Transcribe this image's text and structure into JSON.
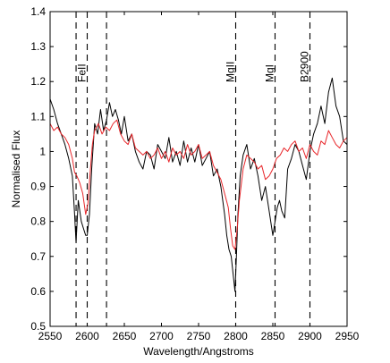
{
  "chart_data": {
    "type": "line",
    "title": "",
    "xlabel": "Wavelength/Angstroms",
    "ylabel": "Normalised Flux",
    "xlim": [
      2550,
      2950
    ],
    "ylim": [
      0.5,
      1.4
    ],
    "grid": false,
    "legend": "none",
    "x_ticks": [
      2550,
      2600,
      2650,
      2700,
      2750,
      2800,
      2850,
      2900,
      2950
    ],
    "y_ticks": [
      0.5,
      0.6,
      0.7,
      0.8,
      0.9,
      1,
      1.1,
      1.2,
      1.3,
      1.4
    ],
    "series": [
      {
        "color": "#000000",
        "x": [
          2550,
          2555,
          2560,
          2565,
          2570,
          2575,
          2580,
          2583,
          2585,
          2588,
          2590,
          2592,
          2595,
          2598,
          2600,
          2603,
          2606,
          2610,
          2614,
          2618,
          2622,
          2626,
          2630,
          2634,
          2638,
          2642,
          2646,
          2650,
          2655,
          2660,
          2665,
          2670,
          2675,
          2680,
          2685,
          2690,
          2695,
          2700,
          2705,
          2710,
          2715,
          2720,
          2725,
          2730,
          2735,
          2740,
          2745,
          2750,
          2755,
          2760,
          2765,
          2770,
          2775,
          2780,
          2785,
          2788,
          2791,
          2794,
          2797,
          2799,
          2801,
          2803,
          2806,
          2810,
          2815,
          2820,
          2825,
          2830,
          2835,
          2840,
          2845,
          2850,
          2853,
          2856,
          2859,
          2862,
          2866,
          2870,
          2875,
          2880,
          2885,
          2890,
          2895,
          2900,
          2905,
          2910,
          2915,
          2920,
          2925,
          2930,
          2935,
          2940,
          2945,
          2950
        ],
        "y": [
          1.15,
          1.12,
          1.08,
          1.05,
          1.02,
          0.98,
          0.93,
          0.82,
          0.74,
          0.86,
          0.83,
          0.8,
          0.78,
          0.76,
          0.76,
          0.82,
          0.95,
          1.08,
          1.05,
          1.12,
          1.06,
          1.09,
          1.14,
          1.1,
          1.12,
          1.09,
          1.05,
          1.1,
          1.03,
          1.05,
          1.0,
          0.97,
          0.95,
          1.0,
          0.99,
          0.95,
          1.02,
          1.0,
          0.98,
          1.04,
          0.97,
          1.0,
          0.96,
          1.03,
          0.97,
          1.01,
          0.97,
          1.02,
          0.96,
          0.98,
          1.0,
          0.93,
          0.95,
          0.9,
          0.82,
          0.76,
          0.72,
          0.7,
          0.64,
          0.6,
          0.7,
          0.82,
          0.93,
          0.99,
          1.02,
          0.95,
          0.98,
          0.93,
          0.86,
          0.9,
          0.83,
          0.76,
          0.8,
          0.84,
          0.86,
          0.83,
          0.81,
          0.95,
          0.98,
          1.02,
          1.0,
          0.96,
          0.92,
          1.0,
          1.05,
          1.08,
          1.13,
          1.08,
          1.17,
          1.21,
          1.13,
          1.1,
          1.03,
          1.02
        ]
      },
      {
        "color": "#e8262a",
        "x": [
          2550,
          2555,
          2560,
          2565,
          2570,
          2575,
          2580,
          2583,
          2586,
          2590,
          2594,
          2598,
          2601,
          2604,
          2607,
          2610,
          2615,
          2620,
          2625,
          2630,
          2635,
          2640,
          2645,
          2650,
          2655,
          2660,
          2665,
          2670,
          2675,
          2680,
          2685,
          2690,
          2695,
          2700,
          2705,
          2710,
          2715,
          2720,
          2725,
          2730,
          2735,
          2740,
          2745,
          2750,
          2755,
          2760,
          2765,
          2770,
          2775,
          2780,
          2785,
          2790,
          2793,
          2796,
          2799,
          2802,
          2805,
          2810,
          2815,
          2820,
          2825,
          2830,
          2835,
          2840,
          2845,
          2850,
          2855,
          2860,
          2865,
          2870,
          2875,
          2880,
          2885,
          2890,
          2895,
          2900,
          2905,
          2910,
          2915,
          2920,
          2925,
          2930,
          2935,
          2940,
          2945,
          2950
        ],
        "y": [
          1.08,
          1.06,
          1.07,
          1.05,
          1.04,
          1.02,
          0.98,
          0.94,
          0.93,
          0.91,
          0.88,
          0.82,
          0.85,
          0.94,
          1.02,
          1.06,
          1.08,
          1.05,
          1.07,
          1.06,
          1.08,
          1.09,
          1.05,
          1.03,
          1.02,
          1.05,
          1.01,
          1.0,
          0.99,
          1.0,
          0.98,
          0.99,
          1.01,
          0.98,
          1.0,
          0.97,
          1.01,
          0.99,
          1.0,
          0.98,
          1.02,
          0.99,
          1.0,
          1.02,
          0.98,
          0.99,
          1.0,
          0.96,
          0.94,
          0.92,
          0.88,
          0.84,
          0.78,
          0.73,
          0.72,
          0.78,
          0.86,
          0.95,
          0.99,
          0.98,
          0.97,
          0.95,
          0.96,
          0.92,
          0.93,
          0.95,
          0.98,
          0.99,
          1.01,
          1.0,
          1.02,
          1.03,
          1.0,
          1.01,
          0.98,
          1.02,
          1.0,
          0.99,
          1.03,
          1.02,
          1.06,
          1.04,
          1.02,
          1.01,
          1.03,
          1.04
        ]
      }
    ],
    "vlines": [
      2585,
      2600,
      2626,
      2800,
      2853,
      2900
    ],
    "annotations": [
      {
        "text": "FeII",
        "x": 2600
      },
      {
        "text": "MgII",
        "x": 2800
      },
      {
        "text": "MgI",
        "x": 2853
      },
      {
        "text": "B2900",
        "x": 2900
      }
    ]
  }
}
